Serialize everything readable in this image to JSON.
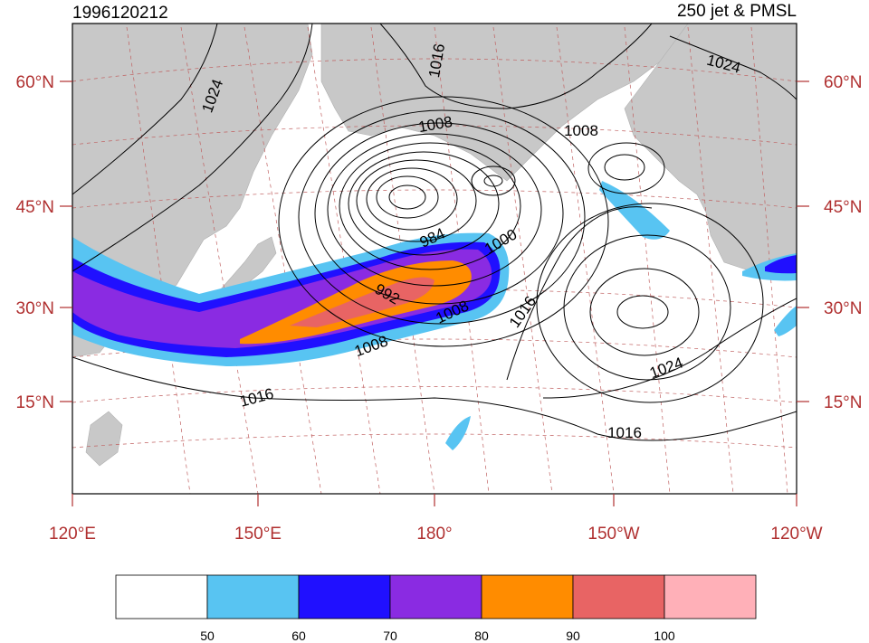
{
  "title_left": "1996120212",
  "title_right": "250 jet & PMSL",
  "lat_labels": [
    "60°N",
    "45°N",
    "30°N",
    "15°N"
  ],
  "lon_labels": [
    "120°E",
    "150°E",
    "180°",
    "150°W",
    "120°W"
  ],
  "contour_labels": [
    "1024",
    "1016",
    "1024",
    "1008",
    "1008",
    "984",
    "1000",
    "992",
    "1016",
    "1008",
    "1008",
    "1024",
    "1016",
    "1016"
  ],
  "colorbar": {
    "labels": [
      "50",
      "60",
      "70",
      "80",
      "90",
      "100"
    ],
    "colors": [
      "#ffffff",
      "#58c4f2",
      "#2010ff",
      "#8a2be2",
      "#ff8c00",
      "#e86464",
      "#ffb0b8"
    ]
  },
  "colors": {
    "land": "#c8c8c8",
    "tick_label": "#b03030",
    "grid": "#c06060"
  }
}
